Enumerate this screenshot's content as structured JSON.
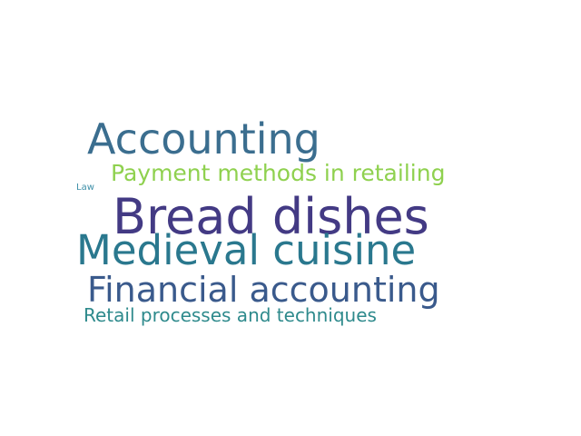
{
  "word_cloud": {
    "words": [
      {
        "id": "accounting",
        "text": "Accounting",
        "color": "#3b6e8f"
      },
      {
        "id": "payment",
        "text": "Payment methods in retailing",
        "color": "#8fd14f"
      },
      {
        "id": "law",
        "text": "Law",
        "color": "#3d8fa8"
      },
      {
        "id": "bread",
        "text": "Bread dishes",
        "color": "#433a84"
      },
      {
        "id": "medieval",
        "text": "Medieval cuisine",
        "color": "#2a788e"
      },
      {
        "id": "financial",
        "text": "Financial accounting",
        "color": "#3a5a8c"
      },
      {
        "id": "retail",
        "text": "Retail processes and techniques",
        "color": "#2e8a8c"
      }
    ]
  }
}
